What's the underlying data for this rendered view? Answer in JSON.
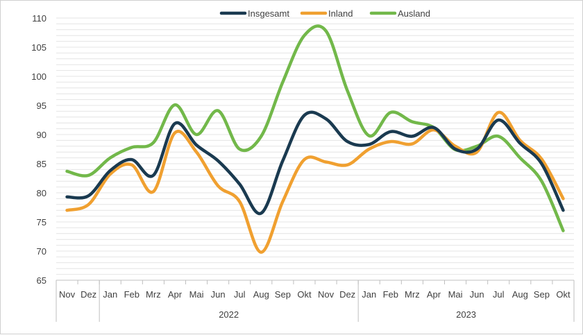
{
  "chart_data": {
    "type": "line",
    "title": "",
    "xlabel": "",
    "ylabel": "",
    "ylim": [
      65,
      110
    ],
    "yticks": [
      65,
      70,
      75,
      80,
      85,
      90,
      95,
      100,
      105,
      110
    ],
    "grid": true,
    "legend_position": "top-center",
    "categories": [
      "Nov",
      "Dez",
      "Jan",
      "Feb",
      "Mrz",
      "Apr",
      "Mai",
      "Jun",
      "Jul",
      "Aug",
      "Sep",
      "Okt",
      "Nov",
      "Dez",
      "Jan",
      "Feb",
      "Mrz",
      "Apr",
      "Mai",
      "Jun",
      "Jul",
      "Aug",
      "Sep",
      "Okt"
    ],
    "year_groups": [
      {
        "label": "2022",
        "start": 2,
        "end": 13
      },
      {
        "label": "2023",
        "start": 14,
        "end": 23
      }
    ],
    "series": [
      {
        "name": "Insgesamt",
        "color": "#1a3a50",
        "values": [
          79.3,
          79.5,
          83.8,
          85.7,
          83.0,
          91.9,
          88.2,
          85.5,
          81.5,
          76.5,
          85.5,
          93.3,
          92.7,
          88.8,
          88.3,
          90.5,
          89.7,
          91.2,
          87.5,
          87.5,
          92.5,
          88.5,
          85.0,
          77.0
        ]
      },
      {
        "name": "Inland",
        "color": "#f0a030",
        "values": [
          77.0,
          78.0,
          83.2,
          84.8,
          80.2,
          90.3,
          87.0,
          81.2,
          78.5,
          69.8,
          78.5,
          85.7,
          85.3,
          84.8,
          87.5,
          88.8,
          88.4,
          90.8,
          88.0,
          87.0,
          93.8,
          89.0,
          85.8,
          79.0
        ]
      },
      {
        "name": "Ausland",
        "color": "#72b84a",
        "values": [
          83.7,
          83.0,
          86.0,
          87.8,
          88.6,
          95.1,
          90.0,
          94.1,
          87.5,
          89.7,
          99.0,
          107.0,
          107.8,
          97.5,
          89.8,
          93.8,
          92.2,
          91.2,
          87.4,
          88.0,
          89.7,
          86.0,
          82.0,
          73.5
        ]
      }
    ]
  }
}
